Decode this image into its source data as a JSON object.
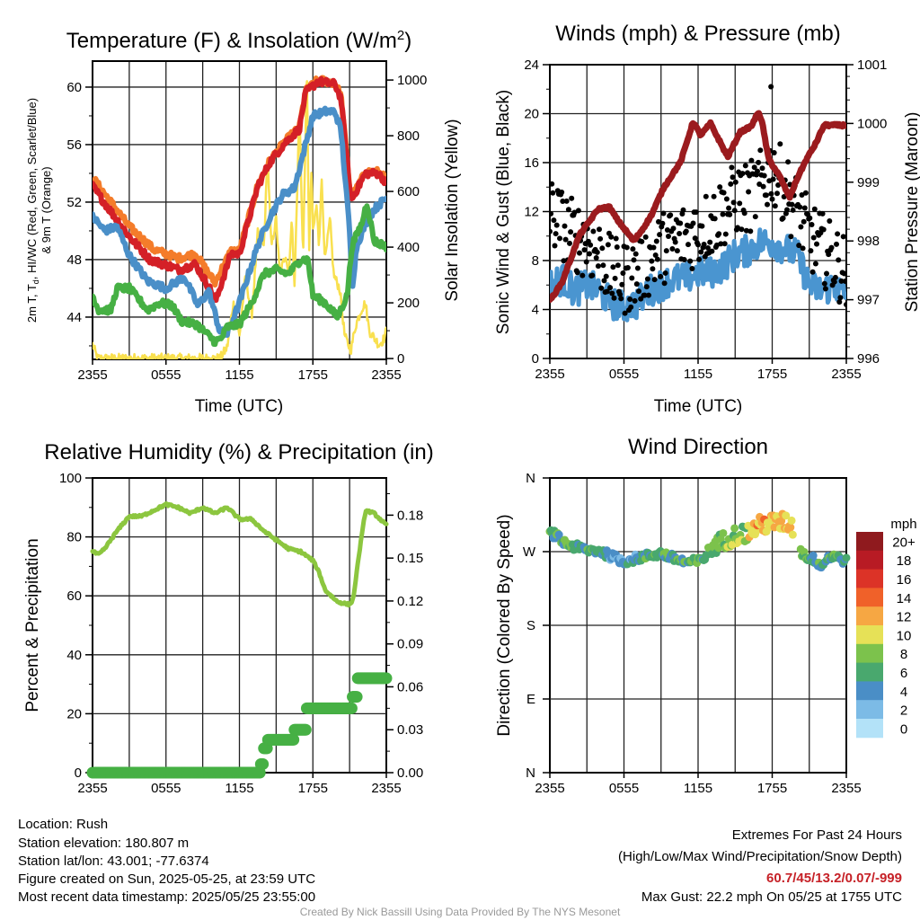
{
  "chart_data": [
    {
      "type": "line",
      "id": "temp",
      "title": "Temperature (F) & Insolation (W/m",
      "title_sup": "2",
      "title_end": ")",
      "ylabel_line1_a": "2m T, T",
      "ylabel_line1_sub": "d",
      "ylabel_line1_b": ", HI/WC (Red, Green, Scarlet/Blue)",
      "ylabel_line2": "& 9m T (Orange)",
      "ylabel2": "Solar Insolation (Yellow)",
      "xlabel": "Time (UTC)",
      "xticks": [
        "2355",
        "0555",
        "1155",
        "1755",
        "2355"
      ],
      "xlim_hours": [
        0,
        24
      ],
      "ylim": [
        41.06,
        61.81
      ],
      "yticks": [
        44,
        48,
        52,
        56,
        60
      ],
      "ylim2": [
        -3,
        1068
      ],
      "yticks2": [
        0,
        200,
        400,
        600,
        800,
        1000
      ],
      "series": [
        {
          "name": "9m T",
          "color": "#f47c2a",
          "axis": "left",
          "x": [
            0,
            3,
            5,
            7,
            8.4,
            10,
            11.3,
            12,
            13.5,
            14.5,
            15.7,
            16.9,
            17.4,
            18.4,
            19.8,
            20.3,
            21.1,
            22.3,
            23.3,
            24
          ],
          "values": [
            53.7,
            50.3,
            48.7,
            48.1,
            48.4,
            46.4,
            48.6,
            48.6,
            53.2,
            54.9,
            56.2,
            57.2,
            59.7,
            60.5,
            60.3,
            59.4,
            52.2,
            54.1,
            54.1,
            53.6
          ]
        },
        {
          "name": "2m T",
          "color": "#d42027",
          "axis": "left",
          "x": [
            0,
            3,
            4.7,
            7.1,
            8.4,
            10.1,
            11.3,
            12,
            13.5,
            14.5,
            15.7,
            16.9,
            17.4,
            18.4,
            19.8,
            20.3,
            21.1,
            22.3,
            23.3,
            24
          ],
          "values": [
            53.1,
            49.6,
            48.0,
            47.3,
            47.7,
            45.2,
            48.4,
            48.4,
            53.1,
            54.8,
            56.1,
            57.1,
            59.6,
            60.4,
            60.2,
            59.2,
            52.1,
            54.0,
            54.0,
            53.4
          ]
        },
        {
          "name": "HI/WC",
          "color": "#4a8fc8",
          "axis": "left",
          "x": [
            0,
            1,
            2,
            3,
            4.5,
            6,
            7.5,
            8.6,
            9.5,
            10.4,
            11,
            12,
            13.5,
            14.5,
            15.5,
            16.5,
            17.4,
            18,
            19,
            19.8,
            20.3,
            21,
            21.2,
            21.6,
            22.3,
            23,
            24
          ],
          "values": [
            51,
            50,
            50.3,
            48.3,
            46.5,
            46,
            46.8,
            44.8,
            45.8,
            43,
            42.8,
            45,
            49,
            51,
            52.5,
            53,
            56,
            58,
            58.3,
            58.3,
            57,
            50,
            46,
            49,
            50.5,
            51.5,
            52.3
          ]
        },
        {
          "name": "2m Td",
          "color": "#46b044",
          "axis": "left",
          "x": [
            0,
            0.5,
            1.5,
            2,
            3,
            4.5,
            5.5,
            6.5,
            7.3,
            8.5,
            10,
            10.5,
            11,
            12,
            13,
            14,
            15,
            16,
            17,
            17.6,
            18,
            19,
            20,
            20.8,
            21.2,
            22,
            22.4,
            23,
            24
          ],
          "values": [
            45.5,
            44.5,
            44.5,
            46,
            46,
            44.5,
            45,
            44.8,
            43.7,
            43.5,
            42.3,
            42.5,
            43.3,
            43.5,
            45,
            47,
            47.3,
            47,
            48,
            48,
            45.5,
            45,
            44,
            45.5,
            49,
            50.5,
            52,
            49.3,
            48.9
          ]
        },
        {
          "name": "Insolation",
          "color": "#f9e04f",
          "axis": "right",
          "x": [
            0,
            0.4,
            10.4,
            11,
            11.5,
            12,
            12.5,
            13,
            13.5,
            14,
            14.3,
            14.6,
            15,
            15.3,
            15.8,
            16,
            16.3,
            16.5,
            16.9,
            17.2,
            17.5,
            17.7,
            17.9,
            18,
            18.3,
            18.5,
            18.7,
            19,
            19.4,
            19.7,
            20.2,
            20.6,
            21.1,
            21.5,
            22,
            22.3,
            22.6,
            23.4,
            23.8,
            24
          ],
          "values": [
            50,
            0,
            0,
            40,
            200,
            80,
            300,
            150,
            450,
            400,
            730,
            400,
            500,
            300,
            380,
            300,
            500,
            250,
            900,
            350,
            1050,
            400,
            700,
            450,
            550,
            400,
            650,
            350,
            500,
            300,
            250,
            80,
            30,
            120,
            180,
            200,
            100,
            50,
            70,
            100
          ]
        }
      ]
    },
    {
      "type": "line+scatter",
      "id": "wind",
      "title": "Winds (mph) & Pressure (mb)",
      "ylabel": "Sonic Wind & Gust (Blue, Black)",
      "ylabel2": "Station Pressure (Maroon)",
      "xlabel": "Time (UTC)",
      "xticks": [
        "2355",
        "0555",
        "1155",
        "1755",
        "2355"
      ],
      "xlim_hours": [
        0,
        24
      ],
      "ylim": [
        0,
        24
      ],
      "yticks": [
        0,
        4,
        8,
        12,
        16,
        20,
        24
      ],
      "ylim2": [
        996,
        1001
      ],
      "yticks2": [
        996,
        997,
        998,
        999,
        1000,
        1001
      ],
      "series": [
        {
          "name": "Pressure",
          "color": "#9b1b1e",
          "axis": "right",
          "x": [
            0,
            1,
            2.4,
            3.9,
            4.8,
            5.5,
            6.8,
            7.5,
            8.2,
            9.2,
            10.6,
            11.6,
            12.2,
            13,
            14.4,
            15.4,
            16.3,
            16.9,
            17.2,
            17.7,
            18.6,
            19.4,
            20.1,
            20.8,
            21.5,
            22.2,
            24
          ],
          "values": [
            996.98,
            997.3,
            998.1,
            998.54,
            998.58,
            998.35,
            998.0,
            998.2,
            998.43,
            998.9,
            999.35,
            1000.03,
            999.8,
            1000.0,
            999.43,
            999.85,
            999.95,
            1000.2,
            1000.0,
            999.4,
            999.1,
            998.74,
            999.1,
            999.4,
            999.65,
            999.97,
            999.97
          ]
        },
        {
          "name": "Wind",
          "color": "#4a95d0",
          "axis": "left",
          "x": [
            0,
            1,
            2,
            3,
            4,
            5,
            6,
            7,
            8,
            9,
            10,
            11,
            12,
            13,
            14,
            15,
            16,
            17,
            18,
            19,
            20,
            21,
            22,
            23,
            24
          ],
          "values": [
            6,
            6.5,
            5.5,
            6,
            5.5,
            4.5,
            4.2,
            4.5,
            5.5,
            6,
            6.5,
            6.5,
            7,
            7,
            7.5,
            8.5,
            8.8,
            9.5,
            9.5,
            9,
            8.5,
            6,
            5.5,
            6,
            5
          ]
        },
        {
          "name": "Gust",
          "color": "#000000",
          "axis": "left",
          "x": [
            0,
            1,
            2,
            3,
            4,
            5,
            6,
            7,
            8,
            9,
            10,
            11,
            12,
            13,
            14,
            15,
            16,
            17,
            18,
            19,
            20,
            21,
            22,
            23,
            24
          ],
          "values": [
            12,
            11,
            10,
            9.5,
            8.5,
            7,
            6.5,
            7,
            8,
            9,
            9.5,
            10,
            10.5,
            11,
            12,
            13,
            13,
            14,
            15.5,
            14,
            12,
            10,
            9,
            8,
            7
          ]
        }
      ],
      "max_gust": {
        "x": 17.9,
        "value": 22.2
      }
    },
    {
      "type": "line",
      "id": "rh",
      "title": "Relative Humidity (%) & Precipitation (in)",
      "ylabel": "Percent & Precipitation",
      "xticks": [
        "2355",
        "0555",
        "1155",
        "1755",
        "2355"
      ],
      "xlim_hours": [
        0,
        24
      ],
      "ylim": [
        0,
        100
      ],
      "yticks": [
        0,
        20,
        40,
        60,
        80,
        100
      ],
      "ylim2": [
        0,
        0.206
      ],
      "yticks2": [
        "0.00",
        "0.03",
        "0.06",
        "0.09",
        "0.12",
        "0.15",
        "0.18"
      ],
      "series": [
        {
          "name": "RH",
          "color": "#8cc63f",
          "axis": "left",
          "x": [
            0,
            0.5,
            1,
            2,
            3,
            4,
            5,
            6,
            7,
            8,
            9,
            10,
            11,
            12,
            13,
            14,
            15,
            16,
            17,
            18,
            18.5,
            19,
            20,
            21,
            21.3,
            21.8,
            22.3,
            23,
            24
          ],
          "values": [
            75,
            74,
            76,
            82,
            87,
            87,
            89,
            91,
            90,
            88,
            90,
            88,
            90,
            86,
            86,
            82,
            79,
            76,
            75,
            72,
            68,
            62,
            58,
            57,
            59,
            75,
            89,
            88,
            84
          ]
        },
        {
          "name": "Precipitation",
          "color": "#46b044",
          "axis": "right",
          "x": [
            0,
            13.6,
            13.7,
            14.0,
            14.3,
            14.6,
            16.5,
            17.5,
            20.8,
            21.2,
            21.6,
            24
          ],
          "values": [
            0,
            0,
            0.006,
            0.017,
            0.023,
            0.023,
            0.03,
            0.045,
            0.045,
            0.053,
            0.066,
            0.066
          ]
        }
      ]
    },
    {
      "type": "scatter",
      "id": "dir",
      "title": "Wind Direction",
      "ylabel": "Direction (Colored By Speed)",
      "xticks": [
        "2355",
        "0555",
        "1155",
        "1755",
        "2355"
      ],
      "xlim_hours": [
        0,
        24
      ],
      "ylim": [
        0,
        360
      ],
      "ytick_labels": [
        "N",
        "E",
        "S",
        "W",
        "N"
      ],
      "direction": {
        "x": [
          0,
          0.5,
          1,
          2,
          3,
          4,
          5,
          6,
          7,
          8,
          9,
          10,
          11,
          12,
          12.5,
          13,
          14,
          15,
          16,
          17,
          18,
          19,
          19.6,
          20.4,
          21,
          21.5,
          22,
          22.5,
          23,
          24
        ],
        "values": [
          293,
          290,
          282,
          276,
          272,
          271,
          264,
          258,
          262,
          265,
          268,
          262,
          257,
          258,
          262,
          275,
          283,
          290,
          293,
          302,
          305,
          306,
          303,
          268,
          262,
          260,
          252,
          263,
          265,
          258
        ]
      },
      "colorbar": {
        "unit": "mph",
        "labels": [
          "20+",
          "18",
          "16",
          "14",
          "12",
          "10",
          "8",
          "6",
          "4",
          "2",
          "0"
        ],
        "colors": [
          "#8f1a1e",
          "#b81b24",
          "#dc3327",
          "#f06129",
          "#f6a743",
          "#e6e157",
          "#7cc24c",
          "#49a86e",
          "#4a8ec6",
          "#7cbbe6",
          "#b3e2f8"
        ]
      }
    }
  ],
  "footer": {
    "left": [
      "Location: Rush",
      "Station elevation: 180.807 m",
      "Station lat/lon: 43.001; -77.6374",
      "Figure created on Sun, 2025-05-25, at 23:59 UTC",
      "Most recent data timestamp: 2025/05/25 23:55:00"
    ],
    "right_title": "Extremes For Past 24 Hours",
    "right_sub": "(High/Low/Max Wind/Precipitation/Snow Depth)",
    "extremes": "60.7/45/13.2/0.07/-999",
    "max_gust": "Max Gust: 22.2 mph On 05/25 at 1755 UTC",
    "credit": "Created By Nick Bassill Using Data Provided By The NYS Mesonet"
  }
}
